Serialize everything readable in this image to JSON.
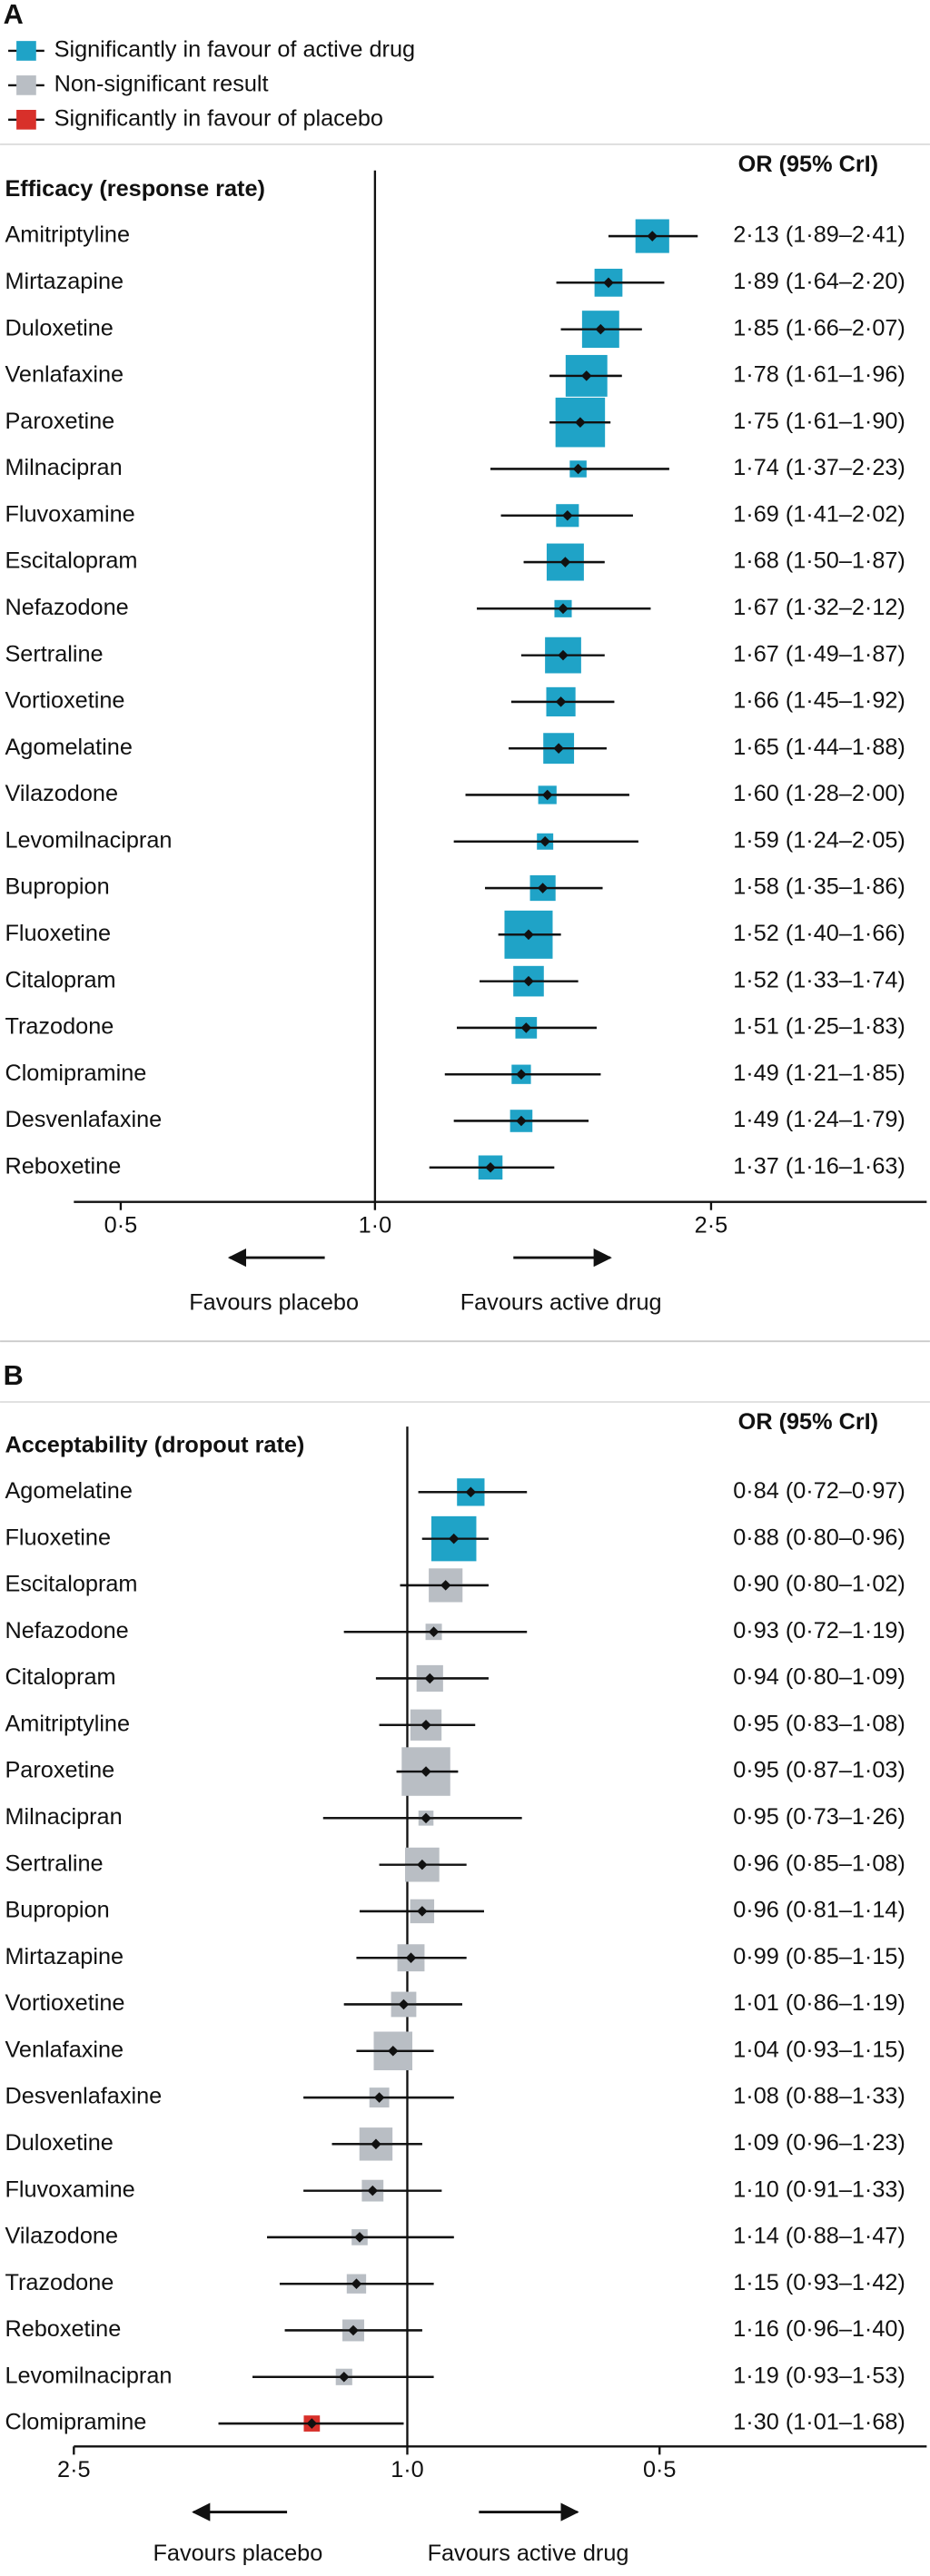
{
  "chart_data": [
    {
      "type": "forest",
      "panel": "A",
      "subtitle": "Efficacy (response rate)",
      "column_header": "OR (95% CrI)",
      "legend": [
        {
          "name": "Significantly in favour of active drug",
          "color": "#1fa3c7"
        },
        {
          "name": "Non-significant result",
          "color": "#b9bec4"
        },
        {
          "name": "Significantly in favour of placebo",
          "color": "#d8302a"
        }
      ],
      "x_scale": "log",
      "xlim": [
        0.44,
        4.5
      ],
      "xticks": [
        {
          "value": 0.5,
          "label": "0·5"
        },
        {
          "value": 1,
          "label": "1·0"
        },
        {
          "value": 2.5,
          "label": "2·5"
        }
      ],
      "left_label": "Favours placebo",
      "right_label": "Favours active drug",
      "categories": [
        "Amitriptyline",
        "Mirtazapine",
        "Duloxetine",
        "Venlafaxine",
        "Paroxetine",
        "Milnacipran",
        "Fluvoxamine",
        "Escitalopram",
        "Nefazodone",
        "Sertraline",
        "Vortioxetine",
        "Agomelatine",
        "Vilazodone",
        "Levomilnacipran",
        "Bupropion",
        "Fluoxetine",
        "Citalopram",
        "Trazodone",
        "Clomipramine",
        "Desvenlafaxine",
        "Reboxetine"
      ],
      "values": [
        2.13,
        1.89,
        1.85,
        1.78,
        1.75,
        1.74,
        1.69,
        1.68,
        1.67,
        1.67,
        1.66,
        1.65,
        1.6,
        1.59,
        1.58,
        1.52,
        1.52,
        1.51,
        1.49,
        1.49,
        1.37
      ],
      "lower": [
        1.89,
        1.64,
        1.66,
        1.61,
        1.61,
        1.37,
        1.41,
        1.5,
        1.32,
        1.49,
        1.45,
        1.44,
        1.28,
        1.24,
        1.35,
        1.4,
        1.33,
        1.25,
        1.21,
        1.24,
        1.16
      ],
      "upper": [
        2.41,
        2.2,
        2.07,
        1.96,
        1.9,
        2.23,
        2.02,
        1.87,
        2.12,
        1.87,
        1.92,
        1.88,
        2.0,
        2.05,
        1.86,
        1.66,
        1.74,
        1.83,
        1.85,
        1.79,
        1.63
      ],
      "value_labels": [
        "2·13 (1·89–2·41)",
        "1·89 (1·64–2·20)",
        "1·85 (1·66–2·07)",
        "1·78 (1·61–1·96)",
        "1·75 (1·61–1·90)",
        "1·74 (1·37–2·23)",
        "1·69 (1·41–2·02)",
        "1·68 (1·50–1·87)",
        "1·67 (1·32–2·12)",
        "1·67 (1·49–1·87)",
        "1·66 (1·45–1·92)",
        "1·65 (1·44–1·88)",
        "1·60 (1·28–2·00)",
        "1·59 (1·24–2·05)",
        "1·58 (1·35–1·86)",
        "1·52 (1·40–1·66)",
        "1·52 (1·33–1·74)",
        "1·51 (1·25–1·83)",
        "1·49 (1·21–1·85)",
        "1·49 (1·24–1·79)",
        "1·37 (1·16–1·63)"
      ]
    },
    {
      "type": "forest",
      "panel": "B",
      "subtitle": "Acceptability (dropout rate)",
      "column_header": "OR (95% CrI)",
      "x_scale": "log",
      "xlim": [
        2.5,
        0.24
      ],
      "xticks": [
        {
          "value": 2.5,
          "label": "2·5"
        },
        {
          "value": 1,
          "label": "1·0"
        },
        {
          "value": 0.5,
          "label": "0·5"
        }
      ],
      "left_label": "Favours placebo",
      "right_label": "Favours active drug",
      "categories": [
        "Agomelatine",
        "Fluoxetine",
        "Escitalopram",
        "Nefazodone",
        "Citalopram",
        "Amitriptyline",
        "Paroxetine",
        "Milnacipran",
        "Sertraline",
        "Bupropion",
        "Mirtazapine",
        "Vortioxetine",
        "Venlafaxine",
        "Desvenlafaxine",
        "Duloxetine",
        "Fluvoxamine",
        "Vilazodone",
        "Trazodone",
        "Reboxetine",
        "Levomilnacipran",
        "Clomipramine"
      ],
      "values": [
        0.84,
        0.88,
        0.9,
        0.93,
        0.94,
        0.95,
        0.95,
        0.95,
        0.96,
        0.96,
        0.99,
        1.01,
        1.04,
        1.08,
        1.09,
        1.1,
        1.14,
        1.15,
        1.16,
        1.19,
        1.3
      ],
      "lower": [
        0.72,
        0.8,
        0.8,
        0.72,
        0.8,
        0.83,
        0.87,
        0.73,
        0.85,
        0.81,
        0.85,
        0.86,
        0.93,
        0.88,
        0.96,
        0.91,
        0.88,
        0.93,
        0.96,
        0.93,
        1.01
      ],
      "upper": [
        0.97,
        0.96,
        1.02,
        1.19,
        1.09,
        1.08,
        1.03,
        1.26,
        1.08,
        1.14,
        1.15,
        1.19,
        1.15,
        1.33,
        1.23,
        1.33,
        1.47,
        1.42,
        1.4,
        1.53,
        1.68
      ],
      "value_labels": [
        "0·84 (0·72–0·97)",
        "0·88 (0·80–0·96)",
        "0·90 (0·80–1·02)",
        "0·93 (0·72–1·19)",
        "0·94 (0·80–1·09)",
        "0·95 (0·83–1·08)",
        "0·95 (0·87–1·03)",
        "0·95 (0·73–1·26)",
        "0·96 (0·85–1·08)",
        "0·96 (0·81–1·14)",
        "0·99 (0·85–1·15)",
        "1·01 (0·86–1·19)",
        "1·04 (0·93–1·15)",
        "1·08 (0·88–1·33)",
        "1·09 (0·96–1·23)",
        "1·10 (0·91–1·33)",
        "1·14 (0·88–1·47)",
        "1·15 (0·93–1·42)",
        "1·16 (0·96–1·40)",
        "1·19 (0·93–1·53)",
        "1·30 (1·01–1·68)"
      ]
    }
  ]
}
